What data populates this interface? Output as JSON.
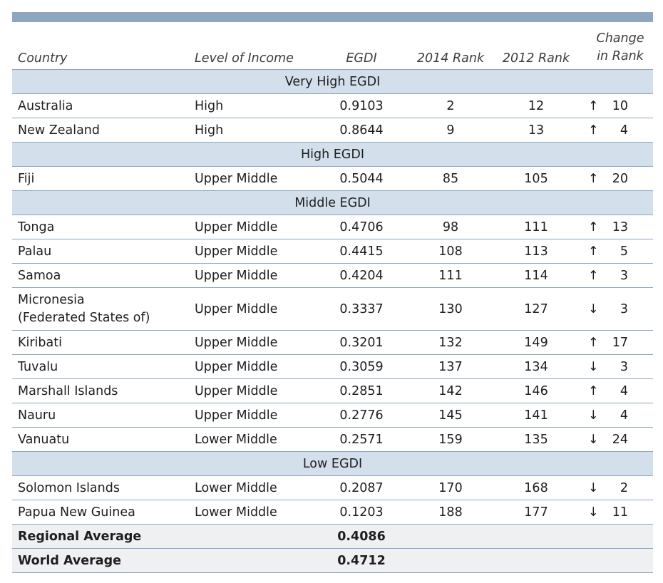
{
  "headers": {
    "country": "Country",
    "income": "Level of Income",
    "egdi": "EGDI",
    "rank2014": "2014 Rank",
    "rank2012": "2012 Rank",
    "change_line1": "Change",
    "change_line2": "in Rank"
  },
  "groups": {
    "very_high": "Very High EGDI",
    "high": "High EGDI",
    "middle": "Middle EGDI",
    "low": "Low EGDI"
  },
  "rows": [
    {
      "country": "Australia",
      "income": "High",
      "egdi": "0.9103",
      "rank2014": "2",
      "rank2012": "12",
      "arrow": "↑",
      "change": "10"
    },
    {
      "country": "New Zealand",
      "income": "High",
      "egdi": "0.8644",
      "rank2014": "9",
      "rank2012": "13",
      "arrow": "↑",
      "change": "4"
    },
    {
      "country": "Fiji",
      "income": "Upper Middle",
      "egdi": "0.5044",
      "rank2014": "85",
      "rank2012": "105",
      "arrow": "↑",
      "change": "20"
    },
    {
      "country": "Tonga",
      "income": "Upper Middle",
      "egdi": "0.4706",
      "rank2014": "98",
      "rank2012": "111",
      "arrow": "↑",
      "change": "13"
    },
    {
      "country": "Palau",
      "income": "Upper Middle",
      "egdi": "0.4415",
      "rank2014": "108",
      "rank2012": "113",
      "arrow": "↑",
      "change": "5"
    },
    {
      "country": "Samoa",
      "income": "Upper Middle",
      "egdi": "0.4204",
      "rank2014": "111",
      "rank2012": "114",
      "arrow": "↑",
      "change": "3"
    },
    {
      "country_line1": "Micronesia",
      "country_line2": "(Federated States of)",
      "income": "Upper Middle",
      "egdi": "0.3337",
      "rank2014": "130",
      "rank2012": "127",
      "arrow": "↓",
      "change": "3"
    },
    {
      "country": "Kiribati",
      "income": "Upper Middle",
      "egdi": "0.3201",
      "rank2014": "132",
      "rank2012": "149",
      "arrow": "↑",
      "change": "17"
    },
    {
      "country": "Tuvalu",
      "income": "Upper Middle",
      "egdi": "0.3059",
      "rank2014": "137",
      "rank2012": "134",
      "arrow": "↓",
      "change": "3"
    },
    {
      "country": "Marshall Islands",
      "income": "Upper Middle",
      "egdi": "0.2851",
      "rank2014": "142",
      "rank2012": "146",
      "arrow": "↑",
      "change": "4"
    },
    {
      "country": "Nauru",
      "income": "Upper Middle",
      "egdi": "0.2776",
      "rank2014": "145",
      "rank2012": "141",
      "arrow": "↓",
      "change": "4"
    },
    {
      "country": "Vanuatu",
      "income": "Lower Middle",
      "egdi": "0.2571",
      "rank2014": "159",
      "rank2012": "135",
      "arrow": "↓",
      "change": "24"
    },
    {
      "country": "Solomon Islands",
      "income": "Lower Middle",
      "egdi": "0.2087",
      "rank2014": "170",
      "rank2012": "168",
      "arrow": "↓",
      "change": "2"
    },
    {
      "country": "Papua New Guinea",
      "income": "Lower Middle",
      "egdi": "0.1203",
      "rank2014": "188",
      "rank2012": "177",
      "arrow": "↓",
      "change": "11"
    }
  ],
  "averages": {
    "regional_label": "Regional Average",
    "regional_value": "0.4086",
    "world_label": "World Average",
    "world_value": "0.4712"
  },
  "colors": {
    "top_bar": "#8fa6bf",
    "group_band": "#d3dfeb",
    "average_band": "#eef0f2",
    "rule": "#8ca5c3"
  }
}
